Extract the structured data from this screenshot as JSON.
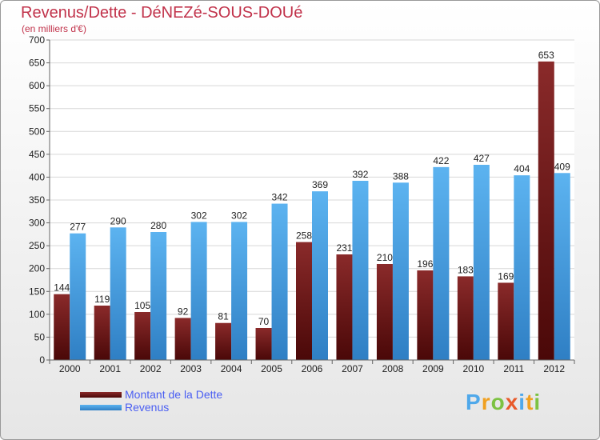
{
  "header": {
    "title": "Revenus/Dette - DéNEZé-SOUS-DOUé",
    "subtitle": "(en milliers d'€)"
  },
  "chart_data": {
    "type": "bar",
    "categories": [
      "2000",
      "2001",
      "2002",
      "2003",
      "2004",
      "2005",
      "2006",
      "2007",
      "2008",
      "2009",
      "2010",
      "2011",
      "2012"
    ],
    "series": [
      {
        "name": "Montant de la Dette",
        "color": "#7a1c1c",
        "values": [
          144,
          119,
          105,
          92,
          81,
          70,
          258,
          231,
          210,
          196,
          183,
          169,
          653
        ]
      },
      {
        "name": "Revenus",
        "color": "#4fa8ea",
        "values": [
          277,
          290,
          280,
          302,
          302,
          342,
          369,
          392,
          388,
          422,
          427,
          404,
          409
        ]
      }
    ],
    "ylim": [
      0,
      700
    ],
    "yticks": [
      0,
      50,
      100,
      150,
      200,
      250,
      300,
      350,
      400,
      450,
      500,
      550,
      600,
      650,
      700
    ],
    "grid": true,
    "legend": "bottom-left"
  },
  "legend": {
    "dette_label": "Montant de la Dette",
    "revenus_label": "Revenus"
  },
  "logo": {
    "letters": [
      "P",
      "r",
      "o",
      "x",
      "i",
      "t",
      "i"
    ],
    "colors": [
      "#4fa8ea",
      "#f0a020",
      "#7cc242",
      "#e85a2a",
      "#4fa8ea",
      "#f0a020",
      "#7cc242"
    ]
  }
}
